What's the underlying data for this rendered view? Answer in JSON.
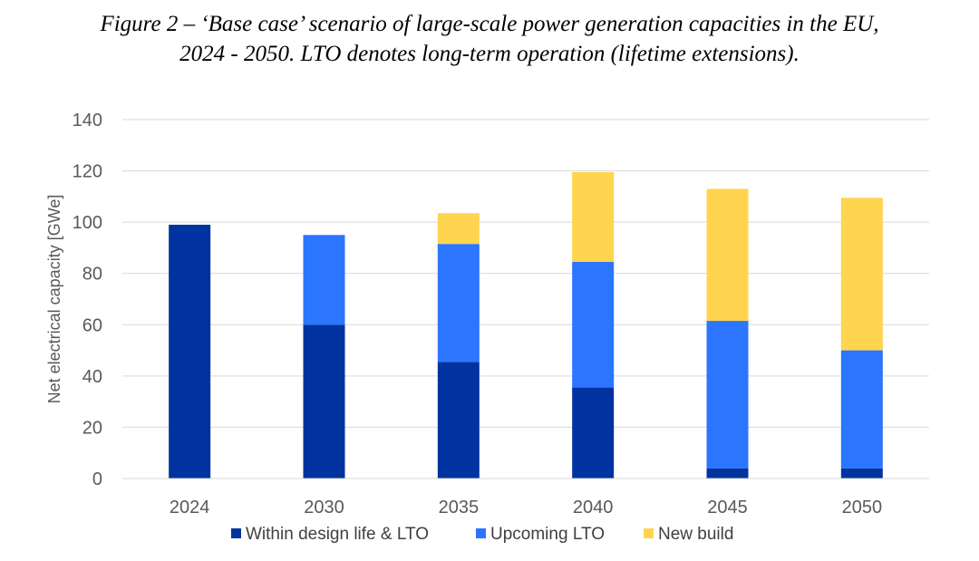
{
  "caption": {
    "line1": "Figure 2 – ‘Base case’ scenario of large-scale power generation capacities in the EU,",
    "line2": "2024 - 2050. LTO denotes long-term operation (lifetime extensions)."
  },
  "chart_data": {
    "type": "bar",
    "stacked": true,
    "categories": [
      "2024",
      "2030",
      "2035",
      "2040",
      "2045",
      "2050"
    ],
    "series": [
      {
        "name": "Within design life & LTO",
        "color": "#0033A0",
        "values": [
          99,
          60,
          45.5,
          35.5,
          4,
          4
        ]
      },
      {
        "name": "Upcoming LTO",
        "color": "#2B75FF",
        "values": [
          0,
          35,
          46,
          49,
          57.5,
          46
        ]
      },
      {
        "name": "New build",
        "color": "#FFD44F",
        "values": [
          0,
          0,
          12,
          35,
          51.5,
          59.5
        ]
      }
    ],
    "ylabel": "Net electrical capacity [GWe]",
    "ylim": [
      0,
      140
    ],
    "yticks": [
      "0",
      "20",
      "40",
      "60",
      "80",
      "100",
      "120",
      "140"
    ],
    "grid": true,
    "legend_position": "bottom"
  }
}
